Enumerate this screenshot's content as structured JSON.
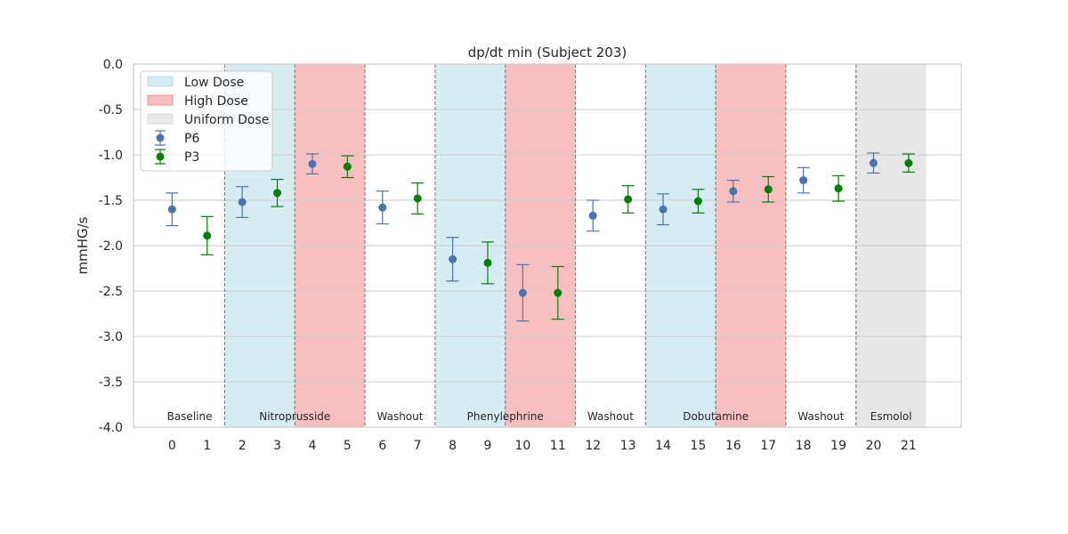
{
  "chart_data": {
    "type": "scatter",
    "title": "dp/dt min (Subject 203)",
    "xlabel": "",
    "ylabel": "mmHG/s",
    "ylim": [
      -4.0,
      0.0
    ],
    "xlim": [
      -1.1,
      22.5
    ],
    "yticks": [
      "0.0",
      "-0.5",
      "-1.0",
      "-1.5",
      "-2.0",
      "-2.5",
      "-3.0",
      "-3.5",
      "-4.0"
    ],
    "xticks": [
      "0",
      "1",
      "2",
      "3",
      "4",
      "5",
      "6",
      "7",
      "8",
      "9",
      "10",
      "11",
      "12",
      "13",
      "14",
      "15",
      "16",
      "17",
      "18",
      "19",
      "20",
      "21"
    ],
    "grid": true,
    "legend_placement": "top-left",
    "legend": [
      {
        "label": "Low Dose",
        "kind": "patch",
        "color": "#add8e6"
      },
      {
        "label": "High Dose",
        "kind": "patch",
        "color": "#f08080"
      },
      {
        "label": "Uniform Dose",
        "kind": "patch",
        "color": "#d3d3d3"
      },
      {
        "label": "P6",
        "kind": "errorbar",
        "color": "#4c72b0"
      },
      {
        "label": "P3",
        "kind": "errorbar",
        "color": "#008000"
      }
    ],
    "regions": [
      {
        "from": 1.5,
        "to": 3.5,
        "dose": "low",
        "color": "#add8e6"
      },
      {
        "from": 3.5,
        "to": 5.5,
        "dose": "high",
        "color": "#f08080"
      },
      {
        "from": 7.5,
        "to": 9.5,
        "dose": "low",
        "color": "#add8e6"
      },
      {
        "from": 9.5,
        "to": 11.5,
        "dose": "high",
        "color": "#f08080"
      },
      {
        "from": 13.5,
        "to": 15.5,
        "dose": "low",
        "color": "#add8e6"
      },
      {
        "from": 15.5,
        "to": 17.5,
        "dose": "high",
        "color": "#f08080"
      },
      {
        "from": 19.5,
        "to": 21.5,
        "dose": "uniform",
        "color": "#d3d3d3"
      }
    ],
    "boundaries": [
      1.5,
      3.5,
      5.5,
      7.5,
      9.5,
      11.5,
      13.5,
      15.5,
      17.5,
      19.5
    ],
    "phases": [
      {
        "label": "Baseline",
        "x": 0.5
      },
      {
        "label": "Nitroprusside",
        "x": 3.5
      },
      {
        "label": "Washout",
        "x": 6.5
      },
      {
        "label": "Phenylephrine",
        "x": 9.5
      },
      {
        "label": "Washout",
        "x": 12.5
      },
      {
        "label": "Dobutamine",
        "x": 15.5
      },
      {
        "label": "Washout",
        "x": 18.5
      },
      {
        "label": "Esmolol",
        "x": 20.5
      }
    ],
    "series": [
      {
        "name": "P6",
        "color": "#4c72b0",
        "x": [
          0,
          2,
          4,
          6,
          8,
          10,
          12,
          14,
          16,
          18,
          20
        ],
        "y": [
          -1.6,
          -1.52,
          -1.1,
          -1.58,
          -2.15,
          -2.52,
          -1.67,
          -1.6,
          -1.4,
          -1.28,
          -1.09
        ],
        "err": [
          0.18,
          0.17,
          0.11,
          0.18,
          0.24,
          0.31,
          0.17,
          0.17,
          0.12,
          0.14,
          0.11
        ]
      },
      {
        "name": "P3",
        "color": "#008000",
        "x": [
          1,
          3,
          5,
          7,
          9,
          11,
          13,
          15,
          17,
          19,
          21
        ],
        "y": [
          -1.89,
          -1.42,
          -1.13,
          -1.48,
          -2.19,
          -2.52,
          -1.49,
          -1.51,
          -1.38,
          -1.37,
          -1.09
        ],
        "err": [
          0.21,
          0.15,
          0.12,
          0.17,
          0.23,
          0.29,
          0.15,
          0.13,
          0.14,
          0.14,
          0.1
        ]
      }
    ]
  }
}
